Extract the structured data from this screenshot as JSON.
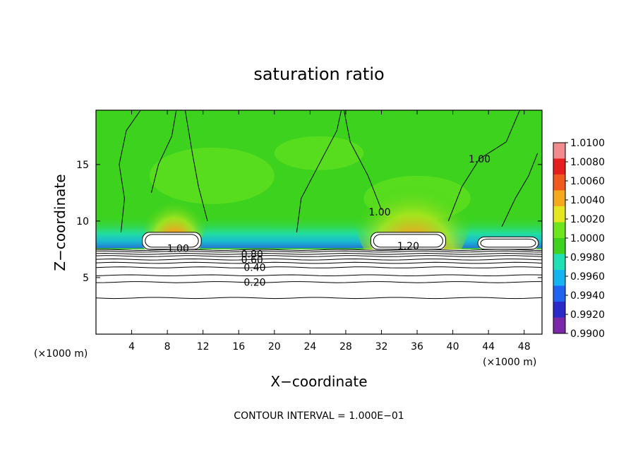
{
  "chart_data": {
    "type": "heatmap",
    "title": "saturation ratio",
    "xlabel": "X−coordinate",
    "ylabel": "Z−coordinate",
    "x_unit_left": "(×1000 m)",
    "x_unit_right": "(×1000 m)",
    "xlim": [
      0,
      50
    ],
    "ylim": [
      0,
      19.8
    ],
    "x_ticks": [
      4,
      8,
      12,
      16,
      20,
      24,
      28,
      32,
      36,
      40,
      44,
      48
    ],
    "y_ticks": [
      5,
      10,
      15
    ],
    "footer": "CONTOUR INTERVAL = 1.000E−01",
    "contour_labels": [
      {
        "text": "1.00",
        "x": 9.2,
        "z": 7.6
      },
      {
        "text": "0.80",
        "x": 17.5,
        "z": 7.1
      },
      {
        "text": "0.60",
        "x": 17.5,
        "z": 6.6
      },
      {
        "text": "0.40",
        "x": 17.8,
        "z": 5.9
      },
      {
        "text": "0.20",
        "x": 17.8,
        "z": 4.6
      },
      {
        "text": "1.20",
        "x": 35.0,
        "z": 7.8
      },
      {
        "text": "1.00",
        "x": 31.8,
        "z": 10.8
      },
      {
        "text": "1.00",
        "x": 43.0,
        "z": 15.5
      }
    ],
    "colorbar": {
      "min": 0.99,
      "max": 1.01,
      "labels": [
        "1.0100",
        "1.0080",
        "1.0060",
        "1.0040",
        "1.0020",
        "1.0000",
        "0.9980",
        "0.9960",
        "0.9940",
        "0.9920",
        "0.9900"
      ],
      "colors": [
        "#7a28a8",
        "#2a2ac8",
        "#1e64f0",
        "#14b4f0",
        "#1ee0b4",
        "#3cd21e",
        "#6ee61e",
        "#e6e61e",
        "#f5aa1e",
        "#f05a1e",
        "#e61e1e",
        "#f08c8c"
      ]
    }
  }
}
